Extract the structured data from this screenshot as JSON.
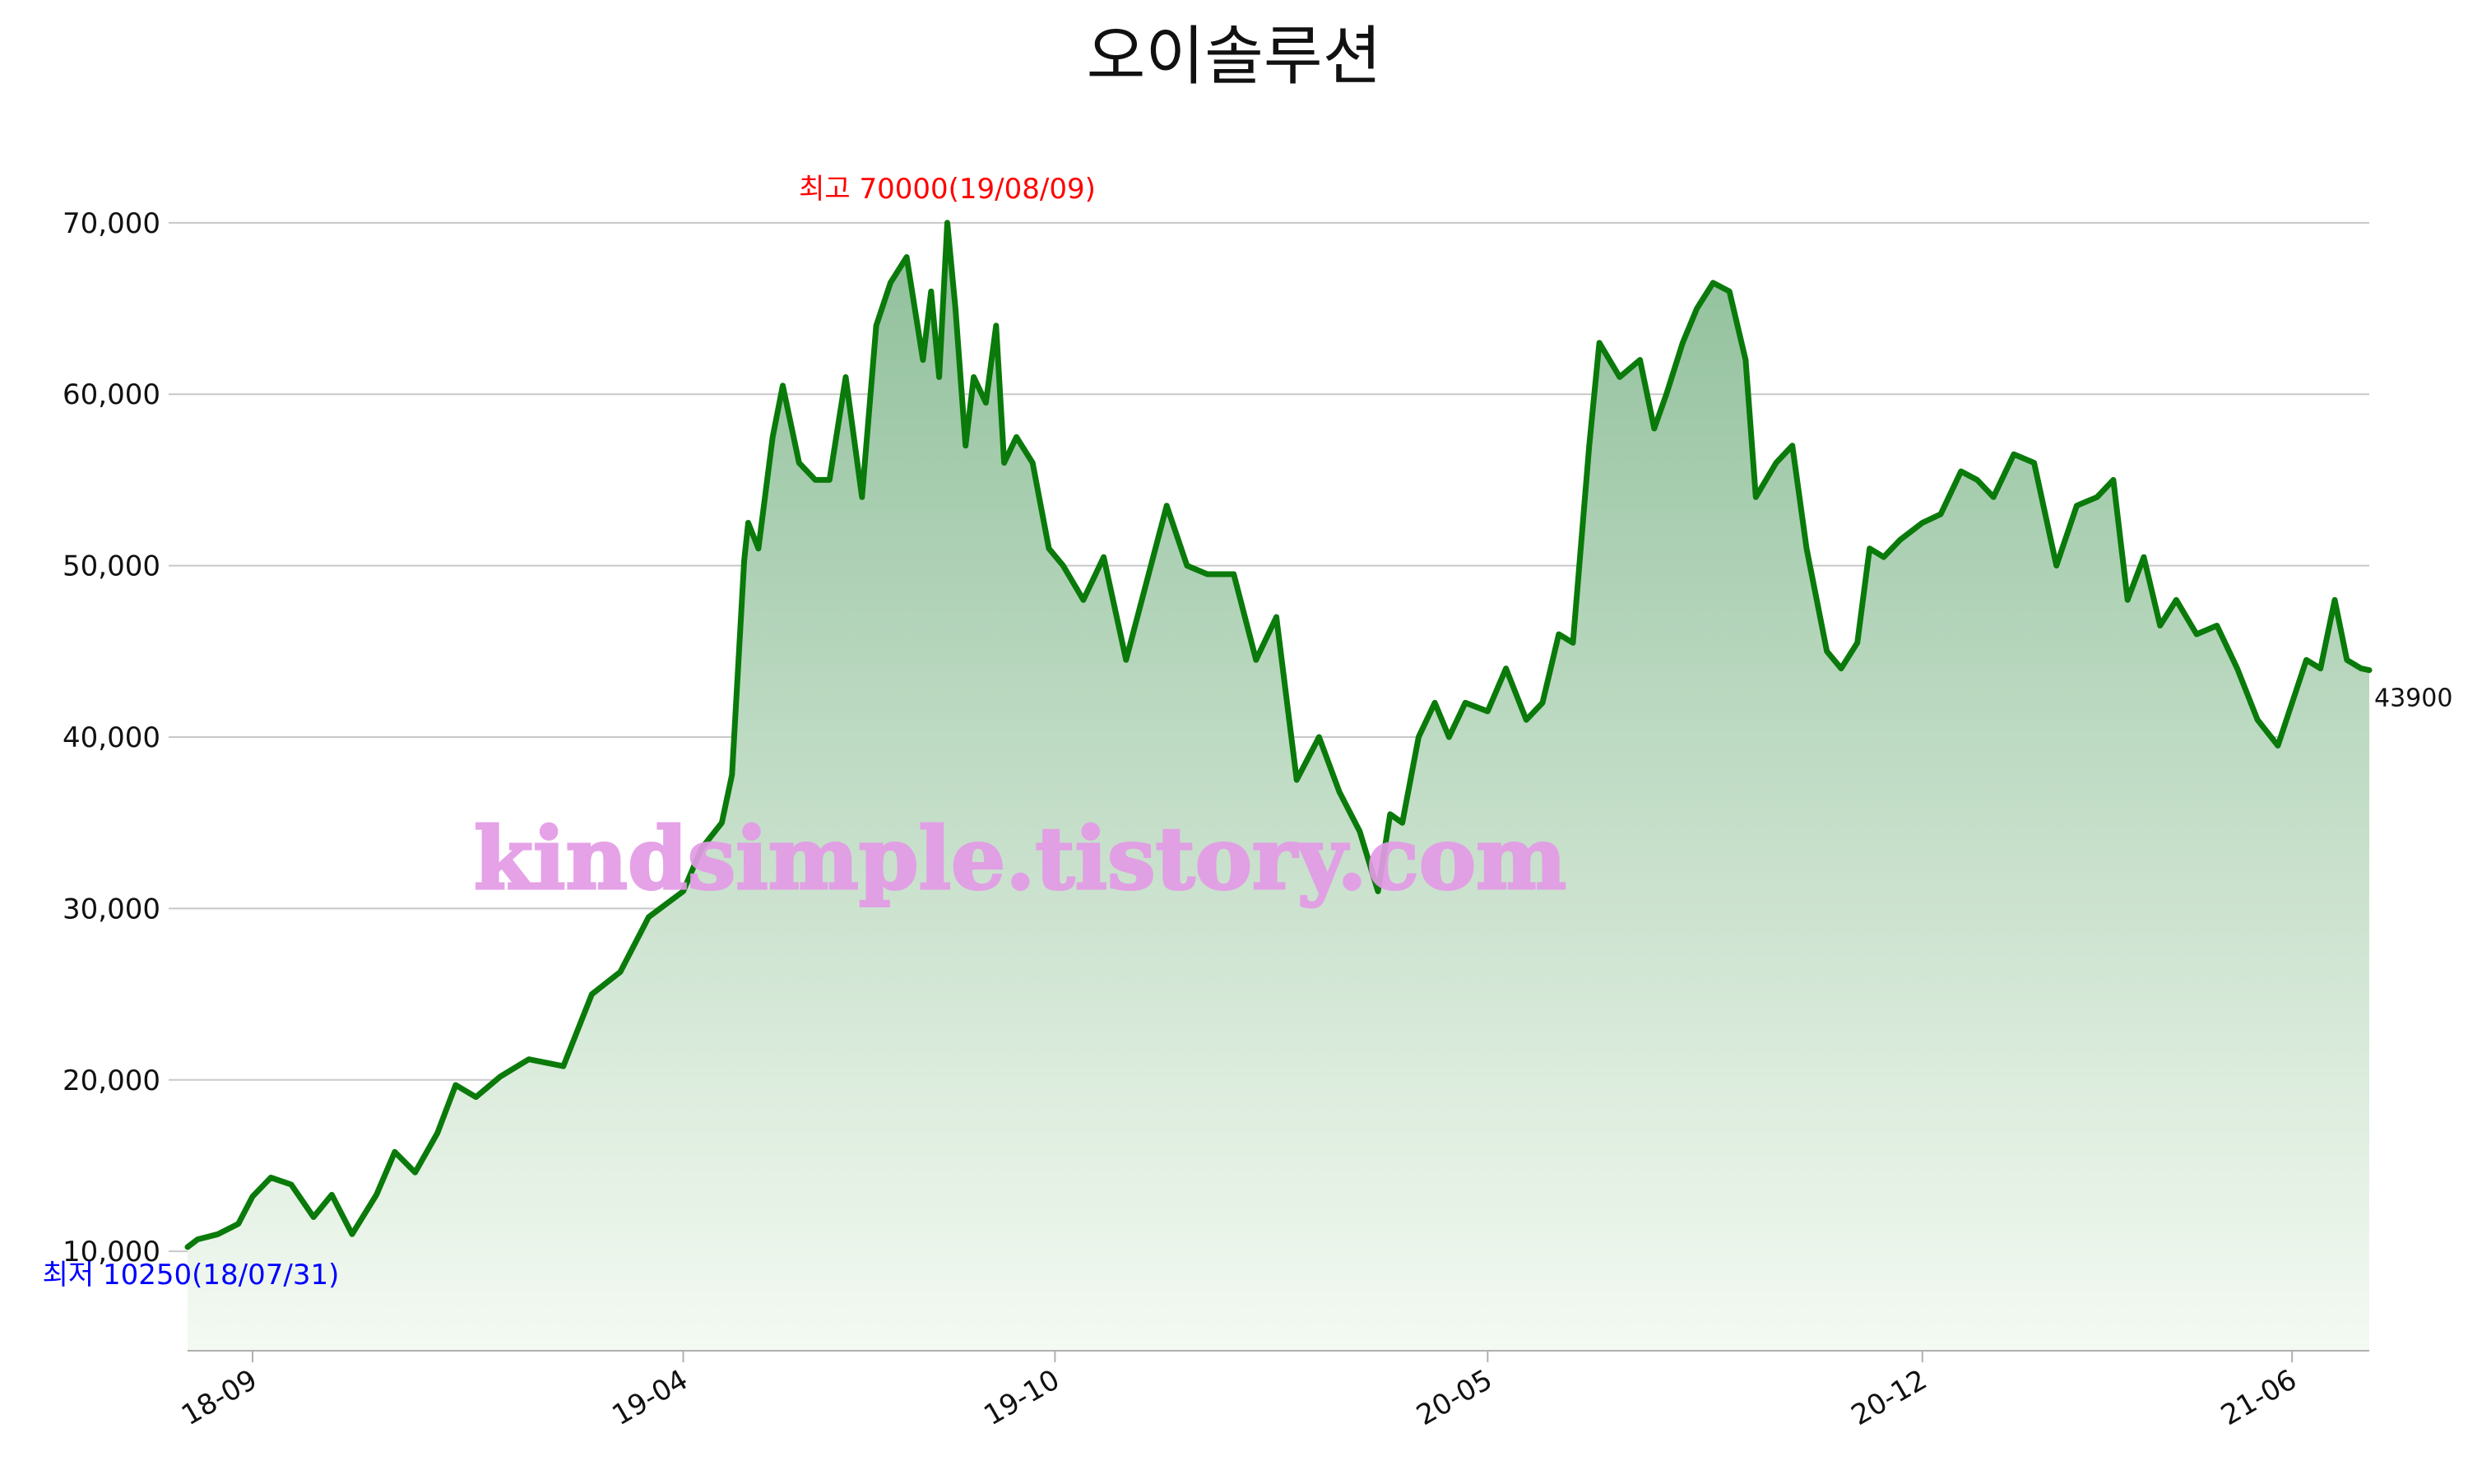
{
  "chart_data": {
    "type": "area",
    "title": "오이솔루션",
    "xlabel": "",
    "ylabel": "",
    "ylim": [
      4200,
      71000
    ],
    "yticks": [
      10000,
      20000,
      30000,
      40000,
      50000,
      60000,
      70000
    ],
    "ytick_labels": [
      "10,000",
      "20,000",
      "30,000",
      "40,000",
      "50,000",
      "60,000",
      "70,000"
    ],
    "xticks": [
      {
        "date": "2018-09-01",
        "label": "18-09"
      },
      {
        "date": "2019-04-01",
        "label": "19-04"
      },
      {
        "date": "2019-10-01",
        "label": "19-10"
      },
      {
        "date": "2020-05-01",
        "label": "20-05"
      },
      {
        "date": "2020-12-01",
        "label": "20-12"
      },
      {
        "date": "2021-06-01",
        "label": "21-06"
      }
    ],
    "grid": true,
    "colors": {
      "line": "#0a7a0a",
      "fill_top": "#8fbf9a",
      "fill_bottom": "#f4faf2",
      "high_annotation": "#ff0000",
      "low_annotation": "#0000ff",
      "watermark": "#e39be6"
    },
    "high_annotation": {
      "text": "최고 70000(19/08/09)",
      "date": "2019-08-09",
      "value": 70000
    },
    "low_annotation": {
      "text": "최저 10250(18/07/31)",
      "date": "2018-07-31",
      "value": 10250
    },
    "last_label": {
      "text": "43900",
      "date": "2021-07-09",
      "value": 43900
    },
    "watermark": "kindsimple.tistory.com",
    "series": [
      {
        "dates": [
          "2018-07-31",
          "2018-08-05",
          "2018-08-15",
          "2018-08-25",
          "2018-09-01",
          "2018-09-10",
          "2018-09-20",
          "2018-10-01",
          "2018-10-10",
          "2018-10-20",
          "2018-11-01",
          "2018-11-10",
          "2018-11-20",
          "2018-12-01",
          "2018-12-10",
          "2018-12-20",
          "2019-01-01",
          "2019-01-15",
          "2019-02-01",
          "2019-02-15",
          "2019-03-01",
          "2019-03-15",
          "2019-04-01",
          "2019-04-10",
          "2019-04-20",
          "2019-04-25",
          "2019-05-01",
          "2019-05-03",
          "2019-05-08",
          "2019-05-15",
          "2019-05-20",
          "2019-05-28",
          "2019-06-05",
          "2019-06-12",
          "2019-06-20",
          "2019-06-28",
          "2019-07-05",
          "2019-07-12",
          "2019-07-20",
          "2019-07-28",
          "2019-08-01",
          "2019-08-05",
          "2019-08-09",
          "2019-08-13",
          "2019-08-18",
          "2019-08-22",
          "2019-08-28",
          "2019-09-02",
          "2019-09-06",
          "2019-09-12",
          "2019-09-20",
          "2019-09-28",
          "2019-10-05",
          "2019-10-15",
          "2019-10-25",
          "2019-11-05",
          "2019-11-15",
          "2019-11-25",
          "2019-12-05",
          "2019-12-15",
          "2019-12-28",
          "2020-01-08",
          "2020-01-18",
          "2020-01-28",
          "2020-02-08",
          "2020-02-18",
          "2020-02-28",
          "2020-03-08",
          "2020-03-14",
          "2020-03-20",
          "2020-03-28",
          "2020-04-05",
          "2020-04-12",
          "2020-04-20",
          "2020-05-01",
          "2020-05-10",
          "2020-05-20",
          "2020-05-28",
          "2020-06-05",
          "2020-06-12",
          "2020-06-20",
          "2020-06-25",
          "2020-07-05",
          "2020-07-15",
          "2020-07-22",
          "2020-07-28",
          "2020-08-05",
          "2020-08-12",
          "2020-08-20",
          "2020-08-28",
          "2020-09-05",
          "2020-09-10",
          "2020-09-20",
          "2020-09-28",
          "2020-10-05",
          "2020-10-15",
          "2020-10-22",
          "2020-10-30",
          "2020-11-05",
          "2020-11-12",
          "2020-11-20",
          "2020-12-01",
          "2020-12-10",
          "2020-12-20",
          "2020-12-28",
          "2021-01-05",
          "2021-01-15",
          "2021-01-25",
          "2021-02-05",
          "2021-02-15",
          "2021-02-25",
          "2021-03-05",
          "2021-03-12",
          "2021-03-20",
          "2021-03-28",
          "2021-04-05",
          "2021-04-15",
          "2021-04-25",
          "2021-05-05",
          "2021-05-15",
          "2021-05-25",
          "2021-06-01",
          "2021-06-08",
          "2021-06-15",
          "2021-06-22",
          "2021-06-28",
          "2021-07-05",
          "2021-07-09"
        ],
        "values": [
          10250,
          10700,
          11000,
          11600,
          13200,
          14300,
          13900,
          12000,
          13300,
          11000,
          13300,
          15800,
          14600,
          16900,
          19700,
          19000,
          20200,
          21200,
          20800,
          25000,
          26300,
          29500,
          31000,
          33500,
          35000,
          37800,
          50300,
          52500,
          51000,
          57500,
          60500,
          56000,
          55000,
          55000,
          61000,
          54000,
          64000,
          66500,
          68000,
          62000,
          66000,
          61000,
          70000,
          65000,
          57000,
          61000,
          59500,
          64000,
          56000,
          57500,
          56000,
          51000,
          50000,
          48000,
          50500,
          44500,
          49000,
          53500,
          50000,
          49500,
          49500,
          44500,
          47000,
          37500,
          40000,
          36800,
          34500,
          31000,
          35500,
          35000,
          40000,
          42000,
          40000,
          42000,
          41500,
          44000,
          41000,
          42000,
          46000,
          45500,
          57000,
          63000,
          61000,
          62000,
          58000,
          60000,
          63000,
          65000,
          66500,
          66000,
          62000,
          54000,
          56000,
          57000,
          51000,
          45000,
          44000,
          45500,
          51000,
          50500,
          51500,
          52500,
          53000,
          55500,
          55000,
          54000,
          56500,
          56000,
          50000,
          53500,
          54000,
          55000,
          48000,
          50500,
          46500,
          48000,
          46000,
          46500,
          44000,
          41000,
          39500,
          42000,
          44500,
          44000,
          48000,
          44500,
          44000,
          43900
        ]
      }
    ]
  }
}
